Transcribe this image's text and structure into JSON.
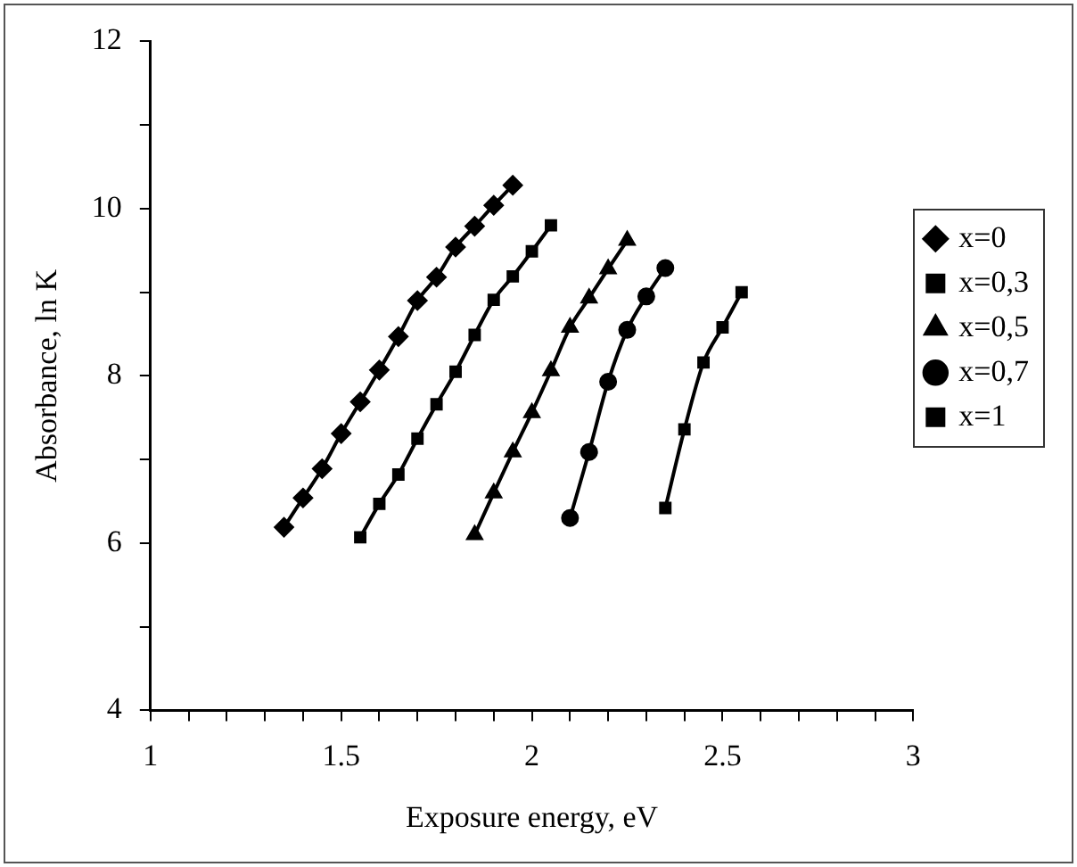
{
  "chart_data": {
    "type": "line",
    "xlabel": "Exposure energy, eV",
    "ylabel": "Absorbance, ln K",
    "xlim": [
      1,
      3
    ],
    "ylim": [
      4,
      12
    ],
    "xticks": [
      1,
      {
        "value": 1.1,
        "label": null
      },
      {
        "value": 1.2,
        "label": null
      },
      {
        "value": 1.3,
        "label": null
      },
      {
        "value": 1.4,
        "label": null
      },
      1.5,
      {
        "value": 1.6,
        "label": null
      },
      {
        "value": 1.7,
        "label": null
      },
      {
        "value": 1.8,
        "label": null
      },
      {
        "value": 1.9,
        "label": null
      },
      2,
      {
        "value": 2.1,
        "label": null
      },
      {
        "value": 2.2,
        "label": null
      },
      {
        "value": 2.3,
        "label": null
      },
      {
        "value": 2.4,
        "label": null
      },
      2.5,
      {
        "value": 2.6,
        "label": null
      },
      {
        "value": 2.7,
        "label": null
      },
      {
        "value": 2.8,
        "label": null
      },
      {
        "value": 2.9,
        "label": null
      },
      3
    ],
    "yticks": [
      4,
      {
        "value": 5,
        "label": null
      },
      6,
      {
        "value": 7,
        "label": null
      },
      8,
      {
        "value": 9,
        "label": null
      },
      10,
      {
        "value": 11,
        "label": null
      },
      12
    ],
    "grid": false,
    "legend": "right",
    "line_style": "solid",
    "series": [
      {
        "name": "x=0",
        "color": "#000000",
        "marker": "diamond",
        "x": [
          1.35,
          1.4,
          1.45,
          1.5,
          1.55,
          1.6,
          1.65,
          1.7,
          1.75,
          1.8,
          1.85,
          1.9,
          1.95
        ],
        "values": [
          6.19,
          6.54,
          6.89,
          7.31,
          7.69,
          8.07,
          8.47,
          8.9,
          9.18,
          9.54,
          9.79,
          10.04,
          10.28
        ]
      },
      {
        "name": "x=0,3",
        "color": "#000000",
        "marker": "square",
        "x": [
          1.55,
          1.6,
          1.65,
          1.7,
          1.75,
          1.8,
          1.85,
          1.9,
          1.95,
          2.0,
          2.05
        ],
        "values": [
          6.07,
          6.47,
          6.82,
          7.25,
          7.66,
          8.05,
          8.49,
          8.91,
          9.19,
          9.49,
          9.8
        ]
      },
      {
        "name": "x=0,5",
        "color": "#000000",
        "marker": "triangle",
        "x": [
          1.85,
          1.9,
          1.95,
          2.0,
          2.05,
          2.1,
          2.15,
          2.2,
          2.25
        ],
        "values": [
          6.1,
          6.6,
          7.09,
          7.56,
          8.06,
          8.58,
          8.93,
          9.28,
          9.62
        ]
      },
      {
        "name": "x=0,7",
        "color": "#000000",
        "marker": "circle",
        "x": [
          2.1,
          2.15,
          2.2,
          2.25,
          2.3,
          2.35
        ],
        "values": [
          6.3,
          7.09,
          7.93,
          8.55,
          8.95,
          9.29
        ]
      },
      {
        "name": "x=1",
        "color": "#000000",
        "marker": "square",
        "x": [
          2.35,
          2.4,
          2.45,
          2.5,
          2.55
        ],
        "values": [
          6.42,
          7.36,
          8.16,
          8.58,
          9.0
        ]
      }
    ]
  }
}
